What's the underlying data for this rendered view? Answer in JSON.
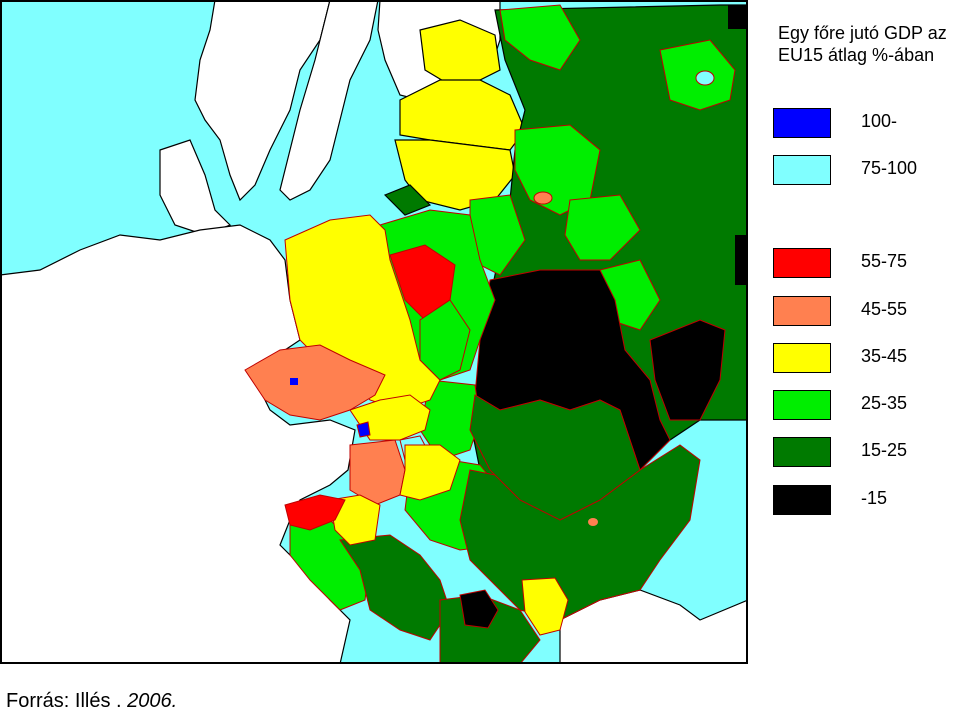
{
  "legend": {
    "title_line1": "Egy főre jutó GDP az",
    "title_line2": "EU15 átlag %-ában",
    "items": [
      {
        "label": "100-",
        "color": "#0000ff"
      },
      {
        "label": "75-100",
        "color": "#80ffff"
      },
      {
        "label": "55-75",
        "color": "#ff0000"
      },
      {
        "label": "45-55",
        "color": "#ff8050"
      },
      {
        "label": "35-45",
        "color": "#ffff00"
      },
      {
        "label": "25-35",
        "color": "#00ee00"
      },
      {
        "label": "15-25",
        "color": "#007a00"
      },
      {
        "label": "-15",
        "color": "#000000"
      }
    ]
  },
  "colors": {
    "sea": "#80ffff",
    "outside_land": "#ffffff",
    "border": "#000000",
    "region_border": "#c00000"
  },
  "source": {
    "prefix": "Forrás: Illés . ",
    "year": "2006."
  }
}
